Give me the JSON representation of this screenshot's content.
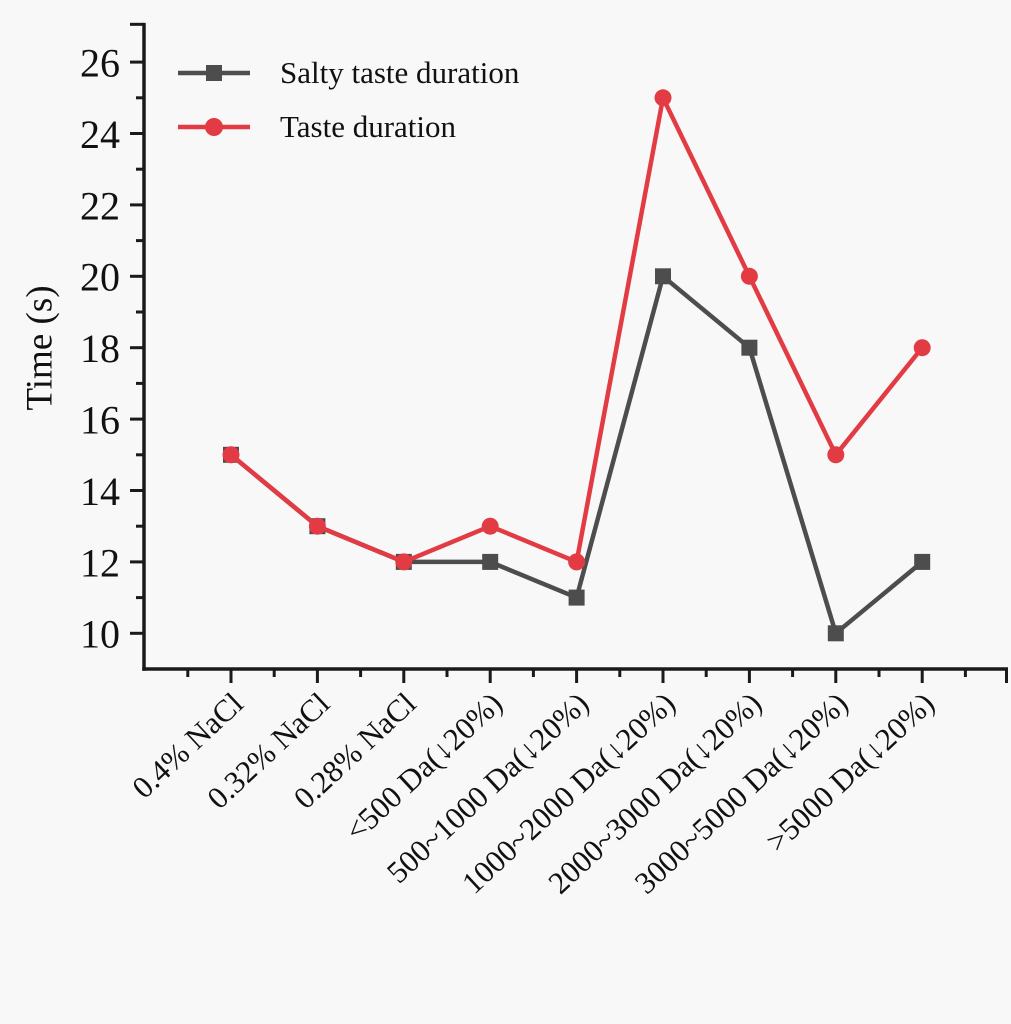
{
  "page": {
    "background": "#f8f8f8",
    "axis_color": "#1a1a1a",
    "text_color": "#111111"
  },
  "chart_data": {
    "type": "line",
    "title": "",
    "xlabel": "",
    "ylabel": "Time (s)",
    "categories": [
      "0.4% NaCl",
      "0.32% NaCl",
      "0.28% NaCl",
      "<500 Da(↓20%)",
      "500~1000 Da(↓20%)",
      "1000~2000 Da(↓20%)",
      "2000~3000 Da(↓20%)",
      "3000~5000 Da(↓20%)",
      ">5000 Da(↓20%)"
    ],
    "series": [
      {
        "name": "Salty taste duration",
        "marker": "square",
        "color": "#4d4d4d",
        "values": [
          15,
          13,
          12,
          12,
          11,
          20,
          18,
          10,
          12
        ]
      },
      {
        "name": "Taste duration",
        "marker": "circle",
        "color": "#e23b43",
        "values": [
          15,
          13,
          12,
          13,
          12,
          25,
          20,
          15,
          18
        ]
      }
    ],
    "ylim": [
      9,
      27.1
    ],
    "y_major_ticks": [
      10,
      12,
      14,
      16,
      18,
      20,
      22,
      24,
      26
    ],
    "y_minor_ticks": [
      11,
      13,
      15,
      17,
      19,
      21,
      23,
      25
    ],
    "x_minor_ticks": "midpoints between categories",
    "grid": false,
    "legend_position": "top-left"
  }
}
